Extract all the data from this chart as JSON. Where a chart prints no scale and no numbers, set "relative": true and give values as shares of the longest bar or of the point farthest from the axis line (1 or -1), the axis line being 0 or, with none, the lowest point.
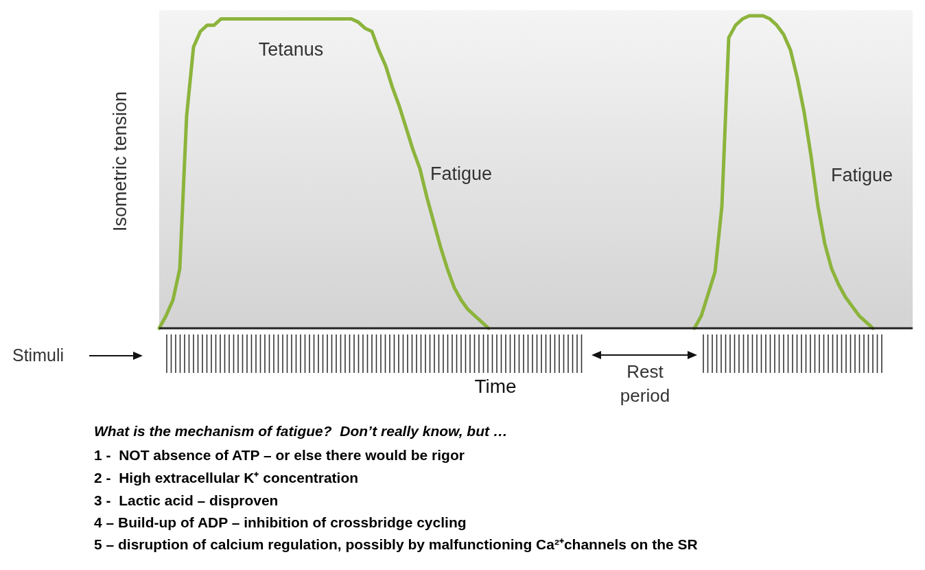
{
  "chart_data": {
    "type": "line",
    "relative": true,
    "ylabel": "Isometric tension",
    "xlabel": "Time",
    "line_style": "solid",
    "marker": "none",
    "categories": [
      null,
      null,
      null,
      null,
      null,
      null,
      null,
      null,
      null,
      null,
      null,
      null,
      null,
      null,
      null,
      null,
      null,
      null,
      null,
      null,
      null,
      null,
      null,
      null,
      null,
      null,
      null,
      null,
      null,
      null,
      null,
      null,
      null,
      null,
      null,
      null,
      null,
      null,
      null,
      null,
      null,
      null,
      null,
      null,
      null,
      null,
      null,
      null,
      null,
      null,
      null,
      null,
      null,
      null,
      null,
      null,
      null,
      null,
      null,
      null,
      null,
      null,
      null,
      null,
      null,
      null,
      null,
      null,
      null,
      null,
      null,
      null,
      null,
      null,
      null,
      null,
      null,
      null,
      null,
      null,
      null,
      null,
      null,
      null,
      null,
      null,
      null,
      null,
      null,
      null,
      null,
      null,
      null,
      null,
      null,
      null,
      null,
      null,
      null,
      null,
      null,
      null,
      null,
      null,
      null
    ],
    "series": [
      {
        "color": "#8cb43c",
        "values": [
          0,
          0.04,
          0.09,
          0.19,
          0.68,
          0.9,
          0.95,
          0.97,
          0.97,
          0.99,
          0.99,
          0.99,
          0.99,
          0.99,
          0.99,
          0.99,
          0.99,
          0.99,
          0.99,
          0.99,
          0.99,
          0.99,
          0.99,
          0.99,
          0.99,
          0.99,
          0.99,
          0.99,
          0.99,
          0.98,
          0.96,
          0.95,
          0.89,
          0.84,
          0.77,
          0.71,
          0.64,
          0.57,
          0.51,
          0.42,
          0.34,
          0.26,
          0.19,
          0.13,
          0.09,
          0.06,
          0.04,
          0.02,
          0,
          null,
          null,
          null,
          null,
          null,
          null,
          null,
          null,
          null,
          null,
          null,
          null,
          null,
          null,
          null,
          null,
          null,
          null,
          null,
          null,
          null,
          null,
          null,
          null,
          null,
          null,
          null,
          null,
          null,
          null,
          null,
          null,
          null,
          null,
          null,
          null,
          null,
          null,
          null,
          null,
          null,
          null,
          null,
          null,
          null,
          null,
          null,
          null,
          null,
          null,
          null,
          null,
          null,
          null,
          null,
          null
        ]
      },
      {
        "color": "#8cb43c",
        "values": [
          null,
          null,
          null,
          null,
          null,
          null,
          null,
          null,
          null,
          null,
          null,
          null,
          null,
          null,
          null,
          null,
          null,
          null,
          null,
          null,
          null,
          null,
          null,
          null,
          null,
          null,
          null,
          null,
          null,
          null,
          null,
          null,
          null,
          null,
          null,
          null,
          null,
          null,
          null,
          null,
          null,
          null,
          null,
          null,
          null,
          null,
          null,
          null,
          null,
          null,
          null,
          null,
          null,
          null,
          null,
          null,
          null,
          null,
          null,
          null,
          null,
          null,
          null,
          null,
          null,
          null,
          null,
          null,
          null,
          null,
          null,
          null,
          null,
          null,
          null,
          null,
          null,
          null,
          0,
          0.04,
          0.11,
          0.18,
          0.39,
          0.93,
          0.97,
          0.99,
          1,
          1,
          1,
          0.99,
          0.97,
          0.94,
          0.89,
          0.8,
          0.69,
          0.55,
          0.39,
          0.27,
          0.19,
          0.14,
          0.1,
          0.07,
          0.04,
          0.02,
          0
        ]
      }
    ],
    "annotations": [
      "Tetanus",
      "Fatigue",
      "Fatigue",
      "Stimuli",
      "Rest period",
      "What is the mechanism of fatigue?  Don’t really know, but …",
      "1 -  NOT absence of ATP – or else there would be rigor",
      "2 -  High extracellular K⁺ concentration",
      "3 -  Lactic acid – disproven",
      "4 – Build-up of ADP – inhibition of crossbridge cycling",
      "5 – disruption of calcium regulation, possibly by malfunctioning Ca²⁺channels on the SR"
    ]
  }
}
